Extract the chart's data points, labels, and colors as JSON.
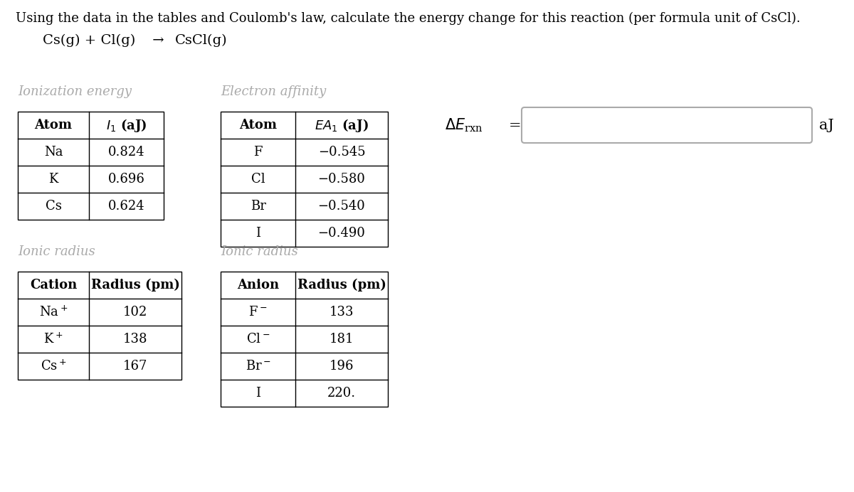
{
  "title": "Using the data in the tables and Coulomb's law, calculate the energy change for this reaction (per formula unit of CsCl).",
  "reaction_parts": [
    "Cs(g) + Cl(g)",
    " → ",
    "CsCl(g)"
  ],
  "ie_label": "Ionization energy",
  "ie_headers": [
    "Atom",
    "$I_1$ (aJ)"
  ],
  "ie_rows": [
    [
      "Na",
      "0.824"
    ],
    [
      "K",
      "0.696"
    ],
    [
      "Cs",
      "0.624"
    ]
  ],
  "ea_label": "Electron affinity",
  "ea_headers": [
    "Atom",
    "$EA_1$ (aJ)"
  ],
  "ea_rows": [
    [
      "F",
      "−0.545"
    ],
    [
      "Cl",
      "−0.580"
    ],
    [
      "Br",
      "−0.540"
    ],
    [
      "I",
      "−0.490"
    ]
  ],
  "ir_cation_label": "Ionic radius",
  "ir_cation_headers": [
    "Cation",
    "Radius (pm)"
  ],
  "ir_cation_rows": [
    [
      "Na$^+$",
      "102"
    ],
    [
      "K$^+$",
      "138"
    ],
    [
      "Cs$^+$",
      "167"
    ]
  ],
  "ir_anion_label": "Ionic radius",
  "ir_anion_headers": [
    "Anion",
    "Radius (pm)"
  ],
  "ir_anion_rows": [
    [
      "F$^-$",
      "133"
    ],
    [
      "Cl$^-$",
      "181"
    ],
    [
      "Br$^-$",
      "196"
    ],
    [
      "I",
      "220."
    ]
  ],
  "answer_unit": "aJ",
  "bg_color": "#ffffff",
  "text_color": "#000000",
  "label_color": "#aaaaaa",
  "table_line_color": "#000000",
  "box_edge_color": "#aaaaaa",
  "body_font_size": 13,
  "title_font_size": 13,
  "label_font_size": 13
}
